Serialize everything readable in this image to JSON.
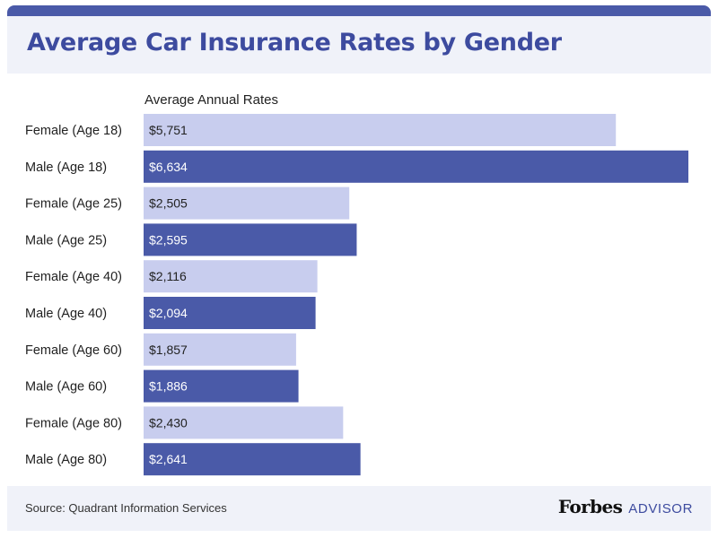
{
  "colors": {
    "accent": "#4a5aa8",
    "female_bar": "#c8cdee",
    "male_bar": "#4a5aa8",
    "panel_bg": "#f0f2f9"
  },
  "header": {
    "title": "Average Car Insurance Rates by Gender"
  },
  "footer": {
    "source": "Source: Quadrant Information Services",
    "brand_name": "Forbes",
    "brand_sub": "ADVISOR"
  },
  "chart_data": {
    "type": "bar",
    "orientation": "horizontal",
    "title": "Average Car Insurance Rates by Gender",
    "series_label": "Average Annual Rates",
    "categories": [
      "Female (Age 18)",
      "Male (Age 18)",
      "Female (Age 25)",
      "Male (Age 25)",
      "Female (Age 40)",
      "Male (Age 40)",
      "Female (Age 60)",
      "Male (Age 60)",
      "Female (Age 80)",
      "Male (Age 80)"
    ],
    "values": [
      5751,
      6634,
      2505,
      2595,
      2116,
      2094,
      1857,
      1886,
      2430,
      2641
    ],
    "value_labels": [
      "$5,751",
      "$6,634",
      "$2,505",
      "$2,595",
      "$2,116",
      "$2,094",
      "$1,857",
      "$1,886",
      "$2,430",
      "$2,641"
    ],
    "gender": [
      "female",
      "male",
      "female",
      "male",
      "female",
      "male",
      "female",
      "male",
      "female",
      "male"
    ],
    "xlim": [
      0,
      6634
    ],
    "grid": false,
    "legend": "none"
  }
}
